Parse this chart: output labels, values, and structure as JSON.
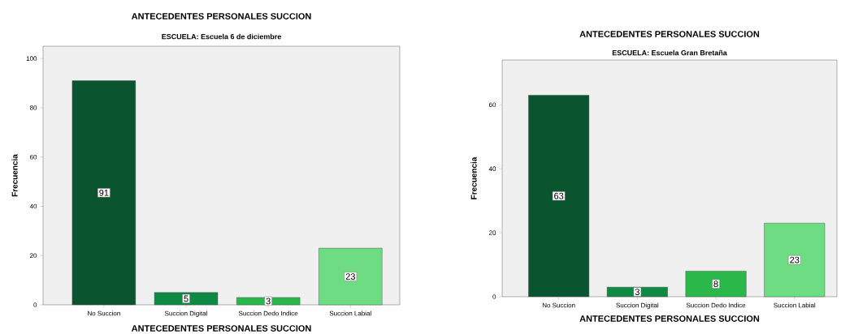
{
  "chart_data": [
    {
      "type": "bar",
      "title": "ANTECEDENTES PERSONALES SUCCION",
      "subtitle": "ESCUELA: Escuela 6 de diciembre",
      "xlabel": "ANTECEDENTES PERSONALES SUCCION",
      "ylabel": "Frecuencia",
      "categories": [
        "No Succion",
        "Succion Digital",
        "Succion Dedo Indice",
        "Succion Labial"
      ],
      "values": [
        91,
        5,
        3,
        23
      ],
      "colors": [
        "#0b5430",
        "#0f8a44",
        "#2bb84a",
        "#6ddc83"
      ],
      "ylim": [
        0,
        105
      ],
      "yticks": [
        0,
        20,
        40,
        60,
        80,
        100
      ],
      "data_labels": true
    },
    {
      "type": "bar",
      "title": "ANTECEDENTES PERSONALES SUCCION",
      "subtitle": "ESCUELA: Escuela Gran Bretaña",
      "xlabel": "ANTECEDENTES PERSONALES SUCCION",
      "ylabel": "Frecuencia",
      "categories": [
        "No Succion",
        "Succion Digital",
        "Succion Dedo Indice",
        "Succion Labial"
      ],
      "values": [
        63,
        3,
        8,
        23
      ],
      "colors": [
        "#0b5430",
        "#0f8a44",
        "#2bb84a",
        "#6ddc83"
      ],
      "ylim": [
        0,
        74
      ],
      "yticks": [
        0,
        20,
        40,
        60
      ],
      "data_labels": true
    }
  ]
}
